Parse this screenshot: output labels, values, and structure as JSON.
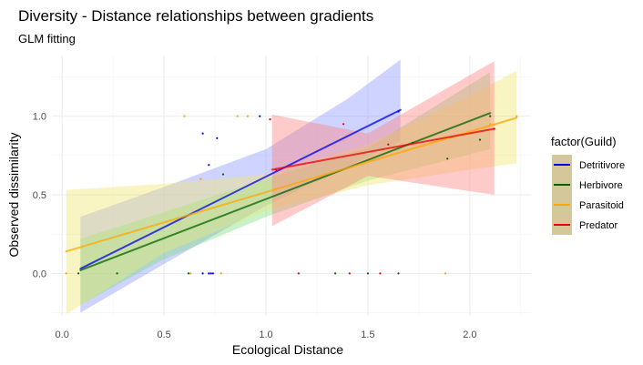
{
  "chart_data": {
    "type": "scatter",
    "title": "Diversity - Distance relationships between gradients",
    "subtitle": "GLM fitting",
    "xlabel": "Ecological Distance",
    "ylabel": "Observed dissimilarity",
    "xlim": [
      -0.05,
      2.3
    ],
    "ylim": [
      -0.27,
      1.38
    ],
    "x_ticks": [
      0.0,
      0.5,
      1.0,
      1.5,
      2.0
    ],
    "x_tick_labels": [
      "0.0",
      "0.5",
      "1.0",
      "1.5",
      "2.0"
    ],
    "y_ticks": [
      0.0,
      0.5,
      1.0
    ],
    "y_tick_labels": [
      "0.0",
      "0.5",
      "1.0"
    ],
    "grid": true,
    "legend": {
      "title": "factor(Guild)",
      "position": "right"
    },
    "series": [
      {
        "name": "Detritivore",
        "color": "#0000ee",
        "ribbon_color": "#8c96ff",
        "fit": {
          "x": [
            0.09,
            1.66
          ],
          "y": [
            0.03,
            1.04
          ]
        },
        "ribbon": {
          "x": [
            0.09,
            0.5,
            1.0,
            1.4,
            1.66
          ],
          "lower": [
            -0.25,
            0.06,
            0.43,
            0.68,
            0.84
          ],
          "upper": [
            0.36,
            0.55,
            0.79,
            1.11,
            1.36
          ]
        },
        "points": [
          [
            0.69,
            0.89
          ],
          [
            0.72,
            0.69
          ],
          [
            0.76,
            0.86
          ],
          [
            0.69,
            0.0
          ],
          [
            0.72,
            0.0
          ],
          [
            0.73,
            0.0
          ],
          [
            0.74,
            0.0
          ],
          [
            0.97,
            1.0
          ],
          [
            1.65,
            1.03
          ]
        ]
      },
      {
        "name": "Herbivore",
        "color": "#006400",
        "ribbon_color": "#7fe07f",
        "fit": {
          "x": [
            0.09,
            2.1
          ],
          "y": [
            0.02,
            1.02
          ]
        },
        "ribbon": {
          "x": [
            0.09,
            0.5,
            1.0,
            1.5,
            2.1
          ],
          "lower": [
            -0.2,
            0.09,
            0.36,
            0.59,
            0.79
          ],
          "upper": [
            0.22,
            0.39,
            0.6,
            0.8,
            1.28
          ]
        },
        "points": [
          [
            0.08,
            0.0
          ],
          [
            0.27,
            0.0
          ],
          [
            0.62,
            0.0
          ],
          [
            0.79,
            0.63
          ],
          [
            1.34,
            0.0
          ],
          [
            1.5,
            0.0
          ],
          [
            1.65,
            0.0
          ],
          [
            1.72,
            0.83
          ],
          [
            1.89,
            0.73
          ],
          [
            2.05,
            0.85
          ],
          [
            2.1,
            1.0
          ]
        ]
      },
      {
        "name": "Parasitoid",
        "color": "#ffa500",
        "ribbon_color": "#f0e670",
        "fit": {
          "x": [
            0.02,
            2.23
          ],
          "y": [
            0.14,
            0.99
          ]
        },
        "ribbon": {
          "x": [
            0.02,
            0.5,
            1.0,
            1.5,
            2.0,
            2.23
          ],
          "lower": [
            -0.26,
            0.13,
            0.4,
            0.56,
            0.66,
            0.7
          ],
          "upper": [
            0.53,
            0.57,
            0.63,
            0.82,
            1.13,
            1.29
          ]
        },
        "points": [
          [
            0.02,
            0.0
          ],
          [
            0.6,
            1.0
          ],
          [
            0.63,
            0.0
          ],
          [
            0.68,
            0.6
          ],
          [
            0.78,
            0.0
          ],
          [
            0.86,
            1.0
          ],
          [
            0.91,
            1.0
          ],
          [
            1.88,
            0.0
          ],
          [
            2.1,
            0.95
          ],
          [
            2.23,
            1.0
          ]
        ]
      },
      {
        "name": "Predator",
        "color": "#ee0000",
        "ribbon_color": "#ff8080",
        "fit": {
          "x": [
            1.03,
            2.12
          ],
          "y": [
            0.66,
            0.92
          ]
        },
        "ribbon": {
          "x": [
            1.03,
            1.5,
            2.12
          ],
          "lower": [
            0.3,
            0.62,
            0.5
          ],
          "upper": [
            1.01,
            0.89,
            1.35
          ]
        },
        "points": [
          [
            1.02,
            0.98
          ],
          [
            1.05,
            0.66
          ],
          [
            1.16,
            0.0
          ],
          [
            1.38,
            0.95
          ],
          [
            1.41,
            0.0
          ],
          [
            1.56,
            0.0
          ],
          [
            1.6,
            0.82
          ],
          [
            2.12,
            0.92
          ]
        ]
      }
    ]
  }
}
